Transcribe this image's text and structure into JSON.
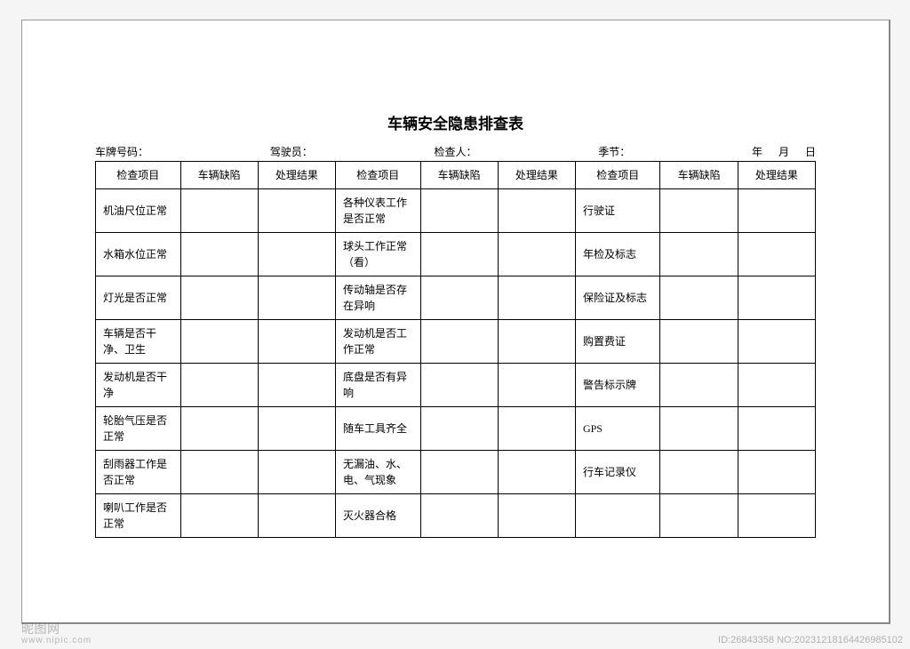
{
  "document": {
    "title": "车辆安全隐患排查表",
    "title_fontsize": 17,
    "body_fontsize": 12,
    "text_color": "#000000",
    "page_bg": "#ffffff",
    "border_color": "#000000"
  },
  "info_fields": {
    "plate_label": "车牌号码：",
    "driver_label": "驾驶员：",
    "inspector_label": "检查人：",
    "season_label": "季节：",
    "year_label": "年",
    "month_label": "月",
    "day_label": "日"
  },
  "table": {
    "headers": [
      "检查项目",
      "车辆缺陷",
      "处理结果",
      "检查项目",
      "车辆缺陷",
      "处理结果",
      "检查项目",
      "车辆缺陷",
      "处理结果"
    ],
    "col_widths_pct": [
      11.5,
      10.5,
      10.5,
      11.5,
      10.5,
      10.5,
      11.5,
      10.5,
      10.5
    ],
    "rows": [
      {
        "c1": "机油尺位正常",
        "c2": "",
        "c3": "",
        "c4": "各种仪表工作是否正常",
        "c5": "",
        "c6": "",
        "c7": "行驶证",
        "c8": "",
        "c9": ""
      },
      {
        "c1": "水箱水位正常",
        "c2": "",
        "c3": "",
        "c4": "球头工作正常（看）",
        "c5": "",
        "c6": "",
        "c7": "年检及标志",
        "c8": "",
        "c9": ""
      },
      {
        "c1": "灯光是否正常",
        "c2": "",
        "c3": "",
        "c4": "传动轴是否存在异响",
        "c5": "",
        "c6": "",
        "c7": "保险证及标志",
        "c8": "",
        "c9": ""
      },
      {
        "c1": "车辆是否干净、卫生",
        "c2": "",
        "c3": "",
        "c4": "发动机是否工作正常",
        "c5": "",
        "c6": "",
        "c7": "购置费证",
        "c8": "",
        "c9": ""
      },
      {
        "c1": "发动机是否干净",
        "c2": "",
        "c3": "",
        "c4": "底盘是否有异响",
        "c5": "",
        "c6": "",
        "c7": "警告标示牌",
        "c8": "",
        "c9": ""
      },
      {
        "c1": "轮胎气压是否正常",
        "c2": "",
        "c3": "",
        "c4": "随车工具齐全",
        "c5": "",
        "c6": "",
        "c7": "GPS",
        "c8": "",
        "c9": ""
      },
      {
        "c1": "刮雨器工作是否正常",
        "c2": "",
        "c3": "",
        "c4": "无漏油、水、电、气现象",
        "c5": "",
        "c6": "",
        "c7": "行车记录仪",
        "c8": "",
        "c9": ""
      },
      {
        "c1": "喇叭工作是否正常",
        "c2": "",
        "c3": "",
        "c4": "灭火器合格",
        "c5": "",
        "c6": "",
        "c7": "",
        "c8": "",
        "c9": ""
      }
    ]
  },
  "watermark": {
    "main": "昵图网",
    "sub": "www.nipic.com",
    "meta": "ID:26843358 NO:20231218164426985102"
  }
}
